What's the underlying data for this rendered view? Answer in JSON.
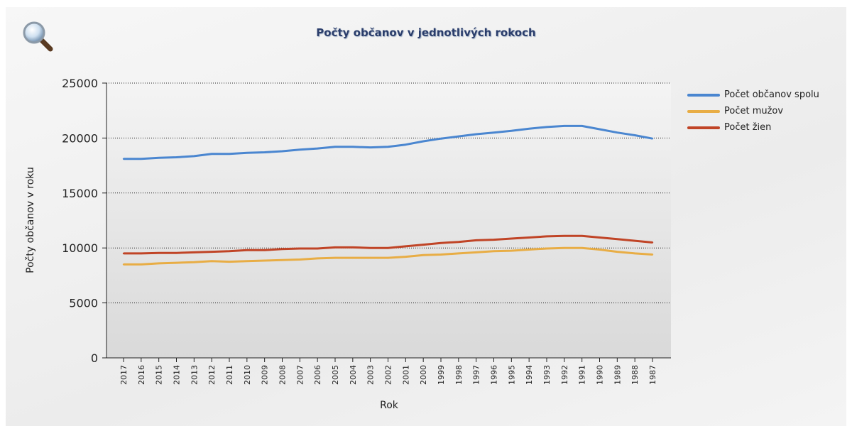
{
  "chart_data": {
    "type": "line",
    "title": "Počty občanov v jednotlivých rokoch",
    "xlabel": "Rok",
    "ylabel": "Počty občanov v roku",
    "ylim": [
      0,
      25000
    ],
    "yticks": [
      "0",
      "5000",
      "10000",
      "15000",
      "20000",
      "25000"
    ],
    "grid": true,
    "legend_position": "top-right",
    "x": [
      "2017",
      "2016",
      "2015",
      "2014",
      "2013",
      "2012",
      "2011",
      "2010",
      "2009",
      "2008",
      "2007",
      "2006",
      "2005",
      "2004",
      "2003",
      "2002",
      "2001",
      "2000",
      "1999",
      "1998",
      "1997",
      "1996",
      "1995",
      "1994",
      "1993",
      "1992",
      "1991",
      "1990",
      "1989",
      "1988",
      "1987"
    ],
    "series": [
      {
        "name": "Počet občanov spolu",
        "color": "#4a86d0",
        "values": [
          18100,
          18100,
          18200,
          18250,
          18350,
          18550,
          18550,
          18650,
          18700,
          18800,
          18950,
          19050,
          19200,
          19200,
          19150,
          19200,
          19400,
          19700,
          19950,
          20150,
          20350,
          20500,
          20650,
          20850,
          21000,
          21100,
          21100,
          20800,
          20500,
          20250,
          19950
        ]
      },
      {
        "name": "Počet mužov",
        "color": "#e8ad45",
        "values": [
          8500,
          8500,
          8600,
          8650,
          8700,
          8800,
          8750,
          8800,
          8850,
          8900,
          8950,
          9050,
          9100,
          9100,
          9100,
          9100,
          9200,
          9350,
          9400,
          9500,
          9600,
          9700,
          9750,
          9850,
          9950,
          10000,
          10000,
          9850,
          9650,
          9500,
          9400
        ]
      },
      {
        "name": "Počet žien",
        "color": "#c04426",
        "values": [
          9500,
          9500,
          9550,
          9550,
          9600,
          9650,
          9700,
          9800,
          9800,
          9900,
          9950,
          9950,
          10050,
          10050,
          10000,
          10000,
          10150,
          10300,
          10450,
          10550,
          10700,
          10750,
          10850,
          10950,
          11050,
          11100,
          11100,
          10950,
          10800,
          10650,
          10500
        ]
      }
    ]
  },
  "toolbar": {
    "zoom_icon": "magnifier-icon"
  }
}
